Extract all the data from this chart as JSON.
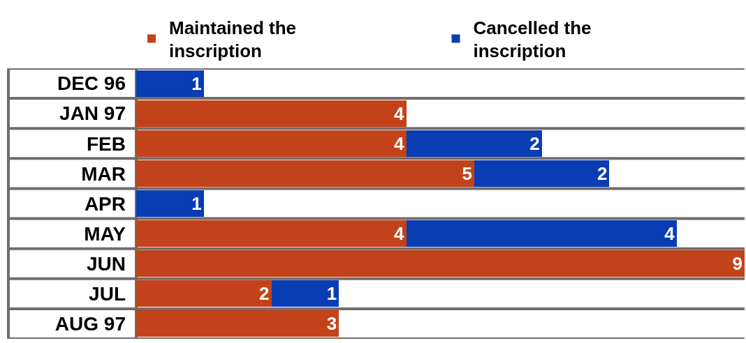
{
  "chart_data": {
    "type": "bar",
    "orientation": "horizontal",
    "stacked": true,
    "categories": [
      "DEC 96",
      "JAN 97",
      "FEB",
      "MAR",
      "APR",
      "MAY",
      "JUN",
      "JUL",
      "AUG 97"
    ],
    "series": [
      {
        "name": "Maintained the inscription",
        "color": "#c2431a",
        "values": [
          null,
          4,
          4,
          5,
          null,
          4,
          9,
          2,
          3
        ]
      },
      {
        "name": "Cancelled the inscription",
        "color": "#0a3db4",
        "values": [
          1,
          null,
          2,
          2,
          1,
          4,
          null,
          1,
          null
        ]
      }
    ],
    "xlim": [
      0,
      9
    ],
    "data_labels": true,
    "grid": "y",
    "legend": "top",
    "tick_labels": "y"
  }
}
